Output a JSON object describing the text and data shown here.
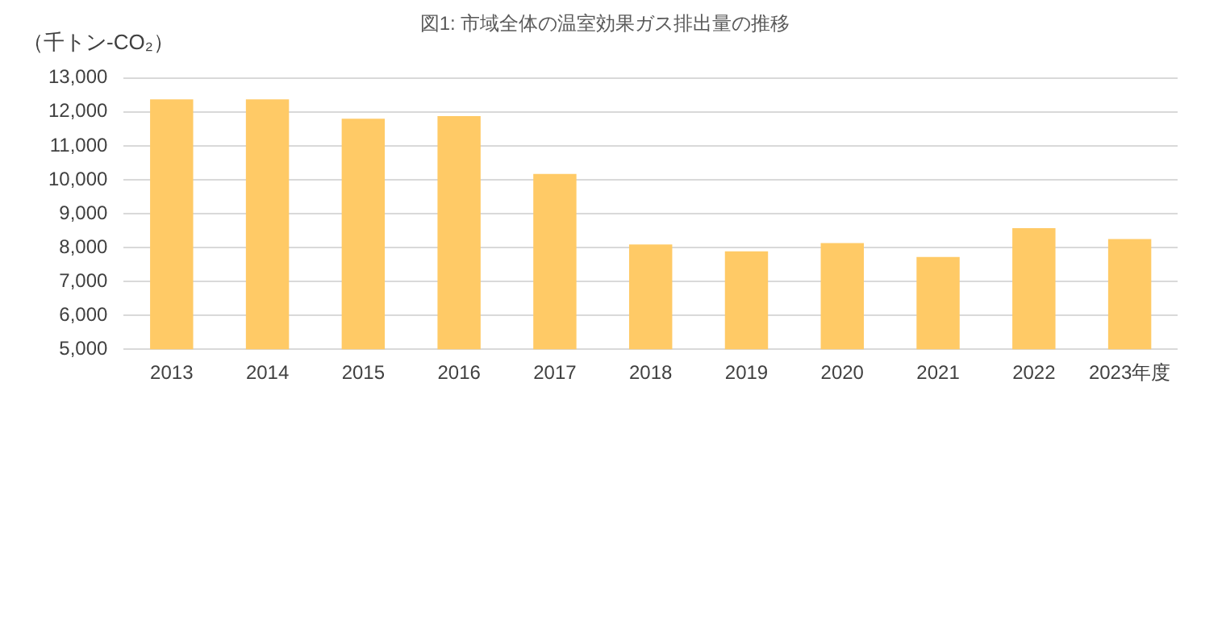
{
  "chart_data": {
    "type": "bar",
    "title": "図1: 市域全体の温室効果ガス排出量の推移",
    "ylabel": "（千トン-CO₂）",
    "categories": [
      "2013",
      "2014",
      "2015",
      "2016",
      "2017",
      "2018",
      "2019",
      "2020",
      "2021",
      "2022",
      "2023年度"
    ],
    "values": [
      12370,
      12370,
      11800,
      11880,
      10170,
      8090,
      7890,
      8130,
      7720,
      8570,
      8250
    ],
    "color": "#ffca66",
    "ylim": [
      5000,
      13000
    ],
    "yticks": [
      {
        "value": 5000,
        "label": "5,000"
      },
      {
        "value": 6000,
        "label": "6,000"
      },
      {
        "value": 7000,
        "label": "7,000"
      },
      {
        "value": 8000,
        "label": "8,000"
      },
      {
        "value": 9000,
        "label": "9,000"
      },
      {
        "value": 10000,
        "label": "10,000"
      },
      {
        "value": 11000,
        "label": "11,000"
      },
      {
        "value": 12000,
        "label": "12,000"
      },
      {
        "value": 13000,
        "label": "13,000"
      }
    ],
    "grid": "y",
    "legend": false
  }
}
